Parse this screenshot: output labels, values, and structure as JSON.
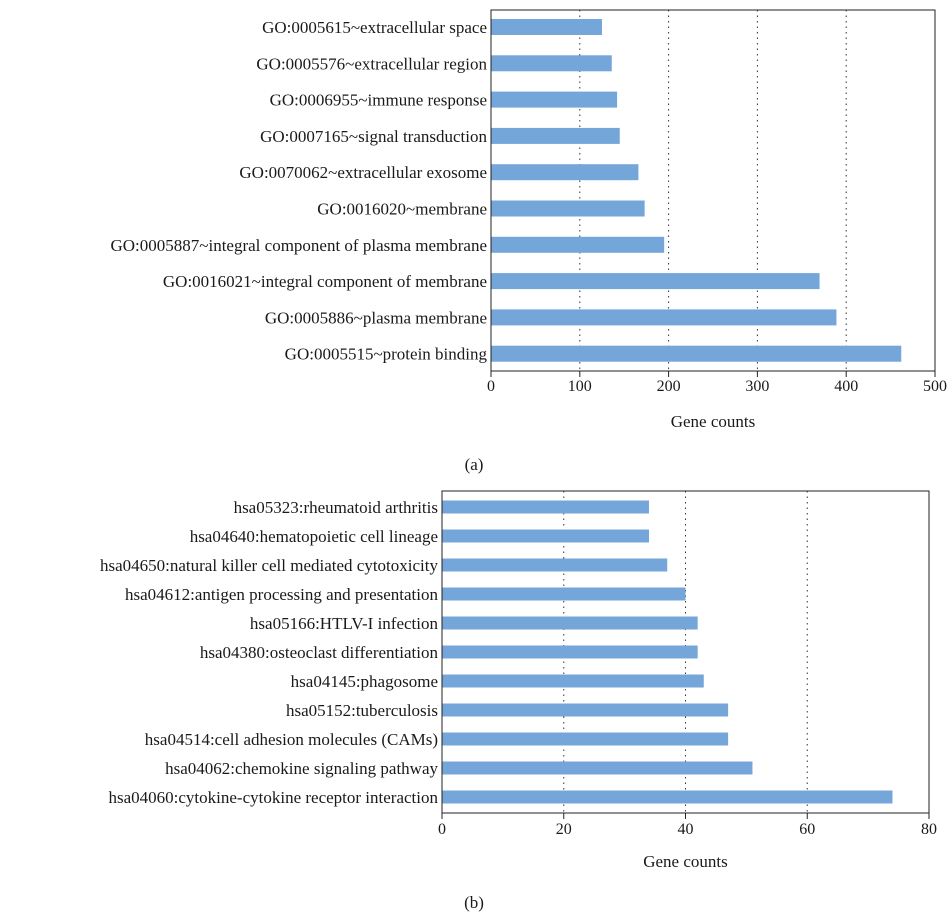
{
  "chart_data": [
    {
      "type": "bar",
      "orientation": "horizontal",
      "panel_label": "(a)",
      "xlabel": "Gene counts",
      "ylabel": "",
      "xlim": [
        0,
        500
      ],
      "xticks": [
        0,
        100,
        200,
        300,
        400,
        500
      ],
      "grid": "vertical dotted",
      "bar_color": "#74a6d9",
      "categories": [
        "GO:0005615~extracellular space",
        "GO:0005576~extracellular region",
        "GO:0006955~immune response",
        "GO:0007165~signal transduction",
        "GO:0070062~extracellular exosome",
        "GO:0016020~membrane",
        "GO:0005887~integral component of plasma membrane",
        "GO:0016021~integral component of membrane",
        "GO:0005886~plasma membrane",
        "GO:0005515~protein binding"
      ],
      "values": [
        125,
        136,
        142,
        145,
        166,
        173,
        195,
        370,
        389,
        462
      ]
    },
    {
      "type": "bar",
      "orientation": "horizontal",
      "panel_label": "(b)",
      "xlabel": "Gene counts",
      "ylabel": "",
      "xlim": [
        0,
        80
      ],
      "xticks": [
        0,
        20,
        40,
        60,
        80
      ],
      "grid": "vertical dotted",
      "bar_color": "#74a6d9",
      "categories": [
        "hsa05323:rheumatoid arthritis",
        "hsa04640:hematopoietic cell lineage",
        "hsa04650:natural killer cell mediated cytotoxicity",
        "hsa04612:antigen processing and presentation",
        "hsa05166:HTLV-I infection",
        "hsa04380:osteoclast differentiation",
        "hsa04145:phagosome",
        "hsa05152:tuberculosis",
        "hsa04514:cell adhesion molecules (CAMs)",
        "hsa04062:chemokine signaling pathway",
        "hsa04060:cytokine-cytokine receptor interaction"
      ],
      "values": [
        34,
        34,
        37,
        40,
        42,
        42,
        43,
        47,
        47,
        51,
        74
      ]
    }
  ]
}
